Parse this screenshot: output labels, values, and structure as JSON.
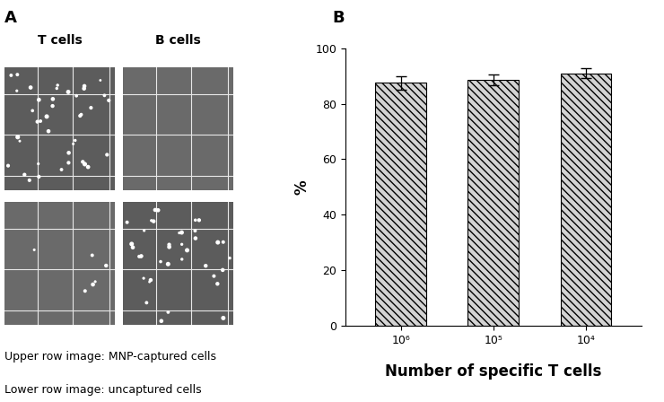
{
  "panel_a": {
    "label": "A",
    "column_titles": [
      "T cells",
      "B cells"
    ],
    "notes": [
      "Upper row image: MNP-captured cells",
      "Lower row image: uncaptured cells"
    ]
  },
  "chart_data": {
    "type": "bar",
    "panel_label": "B",
    "categories": [
      "10⁶",
      "10⁵",
      "10⁴"
    ],
    "values": [
      87.5,
      88.5,
      91.0
    ],
    "errors": [
      2.3,
      2.0,
      1.8
    ],
    "color": "#d3d3d3",
    "ylim": [
      0,
      100
    ],
    "yticks": [
      0,
      20,
      40,
      60,
      80,
      100
    ],
    "x_label": "Number of specific T cells",
    "y_label": "%"
  }
}
